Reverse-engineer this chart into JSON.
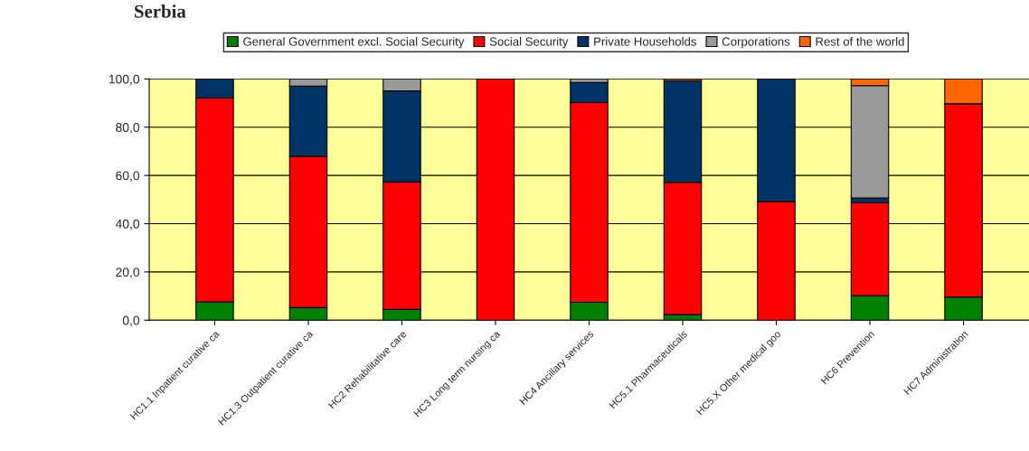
{
  "chart_data": {
    "type": "bar",
    "title": "Serbia",
    "stacked": true,
    "categories": [
      "HC1.1 Inpatient curative ca",
      "HC1.3 Outpatient curative ca",
      "HC2 Rehabilitative care",
      "HC3 Long term nursing ca",
      "HC4 Ancillary services",
      "HC5.1 Pharmaceuticals",
      "HC5.X Other medical goo",
      "HC6 Prevention",
      "HC7 Administration"
    ],
    "series": [
      {
        "name": "General Government excl. Social Security",
        "color": "#008000",
        "values": [
          7.6,
          5.2,
          4.5,
          null,
          7.4,
          2.3,
          null,
          10.2,
          9.6
        ]
      },
      {
        "name": "Social Security",
        "color": "#ff0000",
        "values": [
          84.5,
          62.7,
          52.8,
          100,
          82.8,
          54.9,
          49.2,
          38.5,
          80.1
        ]
      },
      {
        "name": "Private Households",
        "color": "#003366",
        "values": [
          7.9,
          29.1,
          37.7,
          null,
          8.3,
          42.1,
          50.8,
          2.0,
          null
        ]
      },
      {
        "name": "Corporations",
        "color": "#999999",
        "values": [
          null,
          3.0,
          5.0,
          null,
          1.5,
          null,
          null,
          46.5,
          null
        ]
      },
      {
        "name": "Rest of the world",
        "color": "#ff6600",
        "values": [
          null,
          null,
          null,
          null,
          null,
          0.7,
          null,
          2.8,
          10.3
        ]
      }
    ],
    "ylim": [
      0,
      100
    ],
    "yticks": [
      {
        "value": 0,
        "label": "0,0"
      },
      {
        "value": 20,
        "label": "20,0"
      },
      {
        "value": 40,
        "label": "40,0"
      },
      {
        "value": 60,
        "label": "60,0"
      },
      {
        "value": 80,
        "label": "80,0"
      },
      {
        "value": 100,
        "label": "100,0"
      }
    ],
    "grid": "y",
    "legend": "top"
  }
}
